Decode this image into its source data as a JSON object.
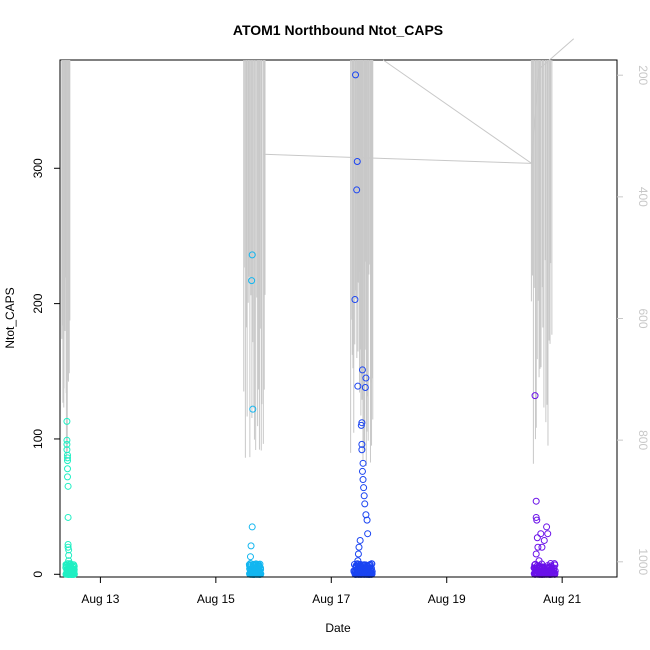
{
  "chart_data": {
    "type": "scatter",
    "title": "ATOM1 Northbound Ntot_CAPS",
    "xlabel": "Date",
    "ylabel": "Ntot_CAPS",
    "x_domain": [
      12.3,
      21.95
    ],
    "ylim": [
      -2,
      380
    ],
    "x_ticks": [
      {
        "value": 13,
        "label": "Aug 13"
      },
      {
        "value": 15,
        "label": "Aug 15"
      },
      {
        "value": 17,
        "label": "Aug 17"
      },
      {
        "value": 19,
        "label": "Aug 19"
      },
      {
        "value": 21,
        "label": "Aug 21"
      }
    ],
    "y_ticks": [
      0,
      100,
      200,
      300
    ],
    "y2_ticks": [
      200,
      400,
      600,
      800,
      1000
    ],
    "y2_domain_inverted": [
      1025,
      175
    ],
    "grid": false,
    "series": [
      {
        "color": "#1fefc3",
        "x": [
          12.42,
          12.42,
          12.42,
          12.42,
          12.43,
          12.43,
          12.43,
          12.43,
          12.43,
          12.44,
          12.44,
          12.44,
          12.44,
          12.45,
          12.45,
          12.45,
          12.46,
          12.46,
          12.47,
          12.47
        ],
        "y": [
          113,
          99,
          96,
          92,
          88,
          86,
          84,
          78,
          72,
          65,
          42,
          22,
          20,
          18,
          14,
          10,
          6,
          4,
          2,
          1
        ]
      },
      {
        "color": "#12b6f0",
        "x": [
          15.63,
          15.62,
          15.64,
          15.63,
          15.61,
          15.6,
          15.6,
          15.66,
          15.68,
          15.7
        ],
        "y": [
          236,
          217,
          122,
          35,
          21,
          13,
          8,
          6,
          4,
          2
        ]
      },
      {
        "color": "#1a44f2",
        "x": [
          17.42,
          17.45,
          17.44,
          17.41,
          17.46,
          17.54,
          17.6,
          17.59,
          17.53,
          17.52,
          17.53,
          17.53,
          17.55,
          17.54,
          17.55,
          17.56,
          17.57,
          17.58,
          17.6,
          17.62,
          17.63,
          17.5,
          17.48,
          17.47,
          17.46,
          17.44,
          17.5
        ],
        "y": [
          369,
          305,
          284,
          203,
          139,
          151,
          145,
          138,
          112,
          110,
          96,
          92,
          82,
          76,
          70,
          64,
          58,
          52,
          44,
          40,
          30,
          25,
          20,
          15,
          10,
          6,
          3
        ]
      },
      {
        "color": "#6a11e9",
        "x": [
          20.53,
          20.55,
          20.55,
          20.56,
          20.57,
          20.58,
          20.55,
          20.63,
          20.73,
          20.75,
          20.69,
          20.65,
          20.6,
          20.8,
          20.7,
          20.6
        ],
        "y": [
          132,
          54,
          42,
          40,
          27,
          20,
          15,
          30,
          35,
          30,
          25,
          20,
          10,
          8,
          5,
          2
        ]
      }
    ],
    "secondary_line": {
      "color": "#c8c8c8",
      "x": [
        15.83,
        17.34,
        20.47,
        20.6,
        21.2
      ],
      "y2": [
        330,
        335,
        345,
        190,
        140
      ]
    }
  }
}
